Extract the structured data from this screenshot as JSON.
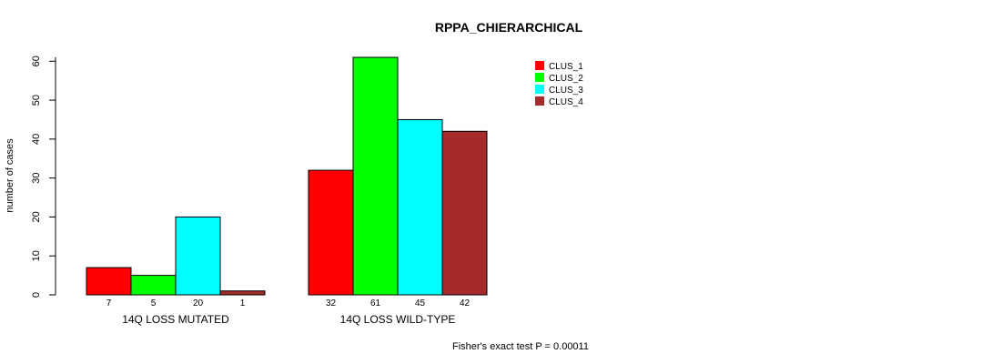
{
  "chart_data": {
    "type": "bar",
    "title": "RPPA_CHIERARCHICAL",
    "xlabel": "",
    "ylabel": "number of cases",
    "ylim": [
      0,
      61
    ],
    "yticks": [
      0,
      10,
      20,
      30,
      40,
      50,
      60
    ],
    "categories": [
      "14Q LOSS MUTATED",
      "14Q LOSS WILD-TYPE"
    ],
    "series": [
      {
        "name": "CLUS_1",
        "color": "#ff0000",
        "values": [
          7,
          32
        ]
      },
      {
        "name": "CLUS_2",
        "color": "#00ff00",
        "values": [
          5,
          61
        ]
      },
      {
        "name": "CLUS_3",
        "color": "#00ffff",
        "values": [
          20,
          45
        ]
      },
      {
        "name": "CLUS_4",
        "color": "#a52a2a",
        "values": [
          1,
          42
        ]
      }
    ],
    "legend_position": "top-right",
    "grid": false,
    "annotation": "Fisher's exact test P = 0.00011"
  }
}
